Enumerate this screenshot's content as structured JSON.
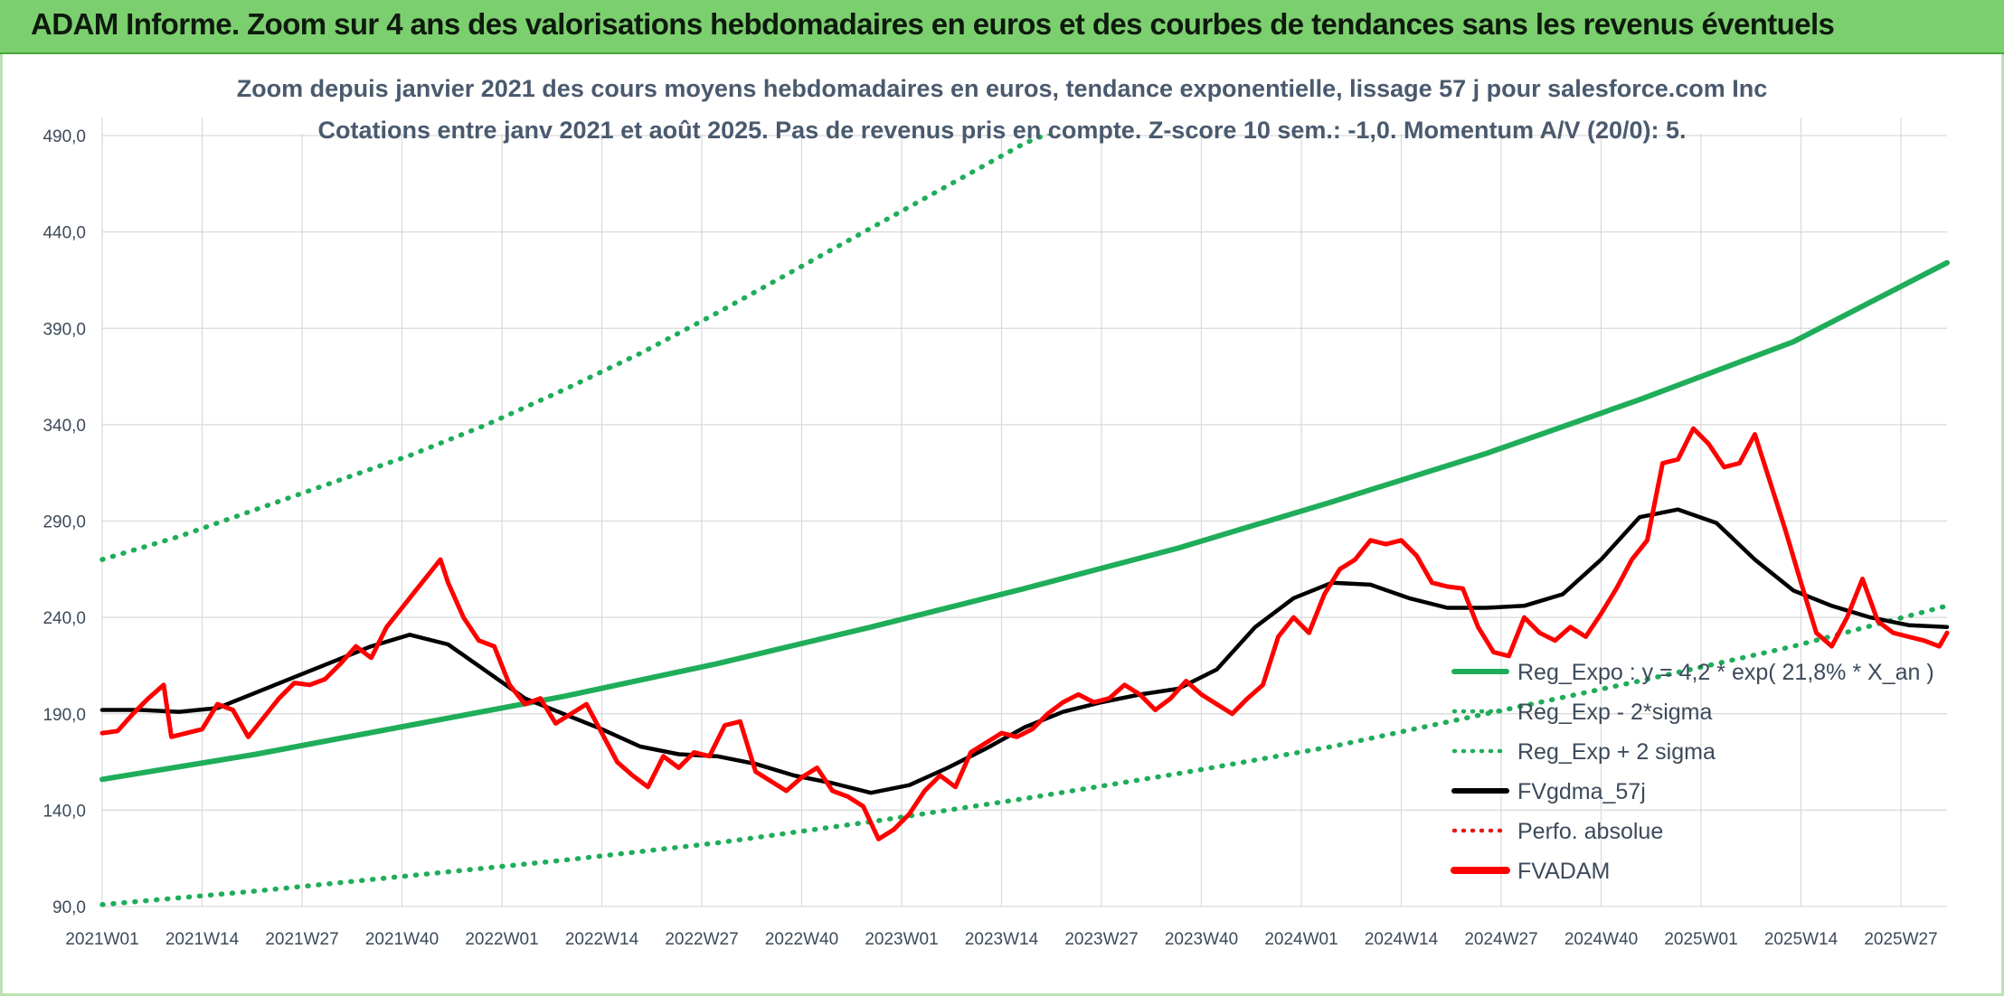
{
  "header": {
    "title": "ADAM Informe. Zoom sur 4 ans des valorisations hebdomadaires en euros et des courbes de tendances sans les revenus éventuels"
  },
  "chart_data": {
    "type": "line",
    "title_line1": "Zoom depuis janvier 2021 des cours moyens hebdomadaires en euros, tendance exponentielle, lissage 57 j pour salesforce.com Inc",
    "title_line2": "Cotations entre janv 2021 et août 2025. Pas de revenus pris en compte. Z-score 10 sem.: -1,0. Momentum A/V (20/0): 5.",
    "ylim": [
      90,
      500
    ],
    "yticks": [
      "90,0",
      "140,0",
      "190,0",
      "240,0",
      "290,0",
      "340,0",
      "390,0",
      "440,0",
      "490,0"
    ],
    "ytick_values": [
      90,
      140,
      190,
      240,
      290,
      340,
      390,
      440,
      490
    ],
    "xlim": [
      0,
      240
    ],
    "xticks": [
      "2021W01",
      "2021W14",
      "2021W27",
      "2021W40",
      "2022W01",
      "2022W14",
      "2022W27",
      "2022W40",
      "2023W01",
      "2023W14",
      "2023W27",
      "2023W40",
      "2024W01",
      "2024W14",
      "2024W27",
      "2024W40",
      "2025W01",
      "2025W14",
      "2025W27"
    ],
    "xtick_positions": [
      0,
      13,
      26,
      39,
      52,
      65,
      78,
      91,
      104,
      117,
      130,
      143,
      156,
      169,
      182,
      195,
      208,
      221,
      234
    ],
    "grid": true,
    "legend_position": "bottom-right",
    "colors": {
      "reg": "#1fad5a",
      "band": "#1fad5a",
      "smooth": "#000000",
      "perf": "#e31a1c",
      "price": "#ff0000"
    },
    "legend": [
      {
        "label": "Reg_Expo : y = 4,2 * exp( 21,8% *  X_an )",
        "style": "solid",
        "color": "#1fad5a"
      },
      {
        "label": "Reg_Exp - 2*sigma",
        "style": "dotted",
        "color": "#1fad5a"
      },
      {
        "label": "Reg_Exp + 2 sigma",
        "style": "dotted",
        "color": "#1fad5a"
      },
      {
        "label": "FVgdma_57j",
        "style": "solid",
        "color": "#000000"
      },
      {
        "label": "Perfo. absolue",
        "style": "dotted",
        "color": "#e31a1c"
      },
      {
        "label": "FVADAM",
        "style": "solid",
        "color": "#ff0000"
      }
    ],
    "series": [
      {
        "name": "Reg_Expo : y = 4,2 * exp( 21,8% *  X_an )",
        "x": [
          0,
          20,
          40,
          60,
          80,
          100,
          120,
          140,
          160,
          180,
          200,
          220,
          240
        ],
        "values": [
          156,
          169,
          184,
          199,
          216,
          235,
          255,
          276,
          300,
          325,
          353,
          383,
          424
        ]
      },
      {
        "name": "Reg_Exp - 2*sigma",
        "x": [
          0,
          20,
          40,
          60,
          80,
          100,
          120,
          140,
          160,
          180,
          200,
          220,
          240
        ],
        "values": [
          91,
          98,
          106,
          114,
          123,
          134,
          146,
          159,
          173,
          190,
          207,
          225,
          246
        ]
      },
      {
        "name": "Reg_Exp + 2 sigma",
        "x": [
          0,
          10,
          20,
          30,
          40,
          50,
          60,
          70,
          80,
          90,
          100,
          110,
          120,
          130,
          140
        ],
        "values": [
          270,
          282,
          296,
          310,
          324,
          340,
          358,
          377,
          398,
          420,
          442,
          464,
          486,
          502,
          502
        ]
      },
      {
        "name": "FVgdma_57j",
        "x": [
          0,
          5,
          10,
          15,
          20,
          25,
          30,
          35,
          40,
          45,
          50,
          55,
          60,
          65,
          70,
          75,
          80,
          85,
          90,
          95,
          100,
          105,
          110,
          115,
          120,
          125,
          130,
          135,
          140,
          145,
          150,
          155,
          160,
          165,
          170,
          175,
          180,
          185,
          190,
          195,
          200,
          205,
          210,
          215,
          220,
          225,
          230,
          235,
          240
        ],
        "values": [
          192,
          192,
          191,
          193,
          201,
          209,
          217,
          225,
          231,
          226,
          212,
          198,
          190,
          182,
          173,
          169,
          168,
          164,
          158,
          154,
          149,
          153,
          162,
          172,
          183,
          191,
          196,
          200,
          203,
          213,
          235,
          250,
          258,
          257,
          250,
          245,
          245,
          246,
          252,
          270,
          292,
          296,
          289,
          270,
          254,
          246,
          240,
          236,
          235
        ]
      },
      {
        "name": "FVADAM",
        "x": [
          0,
          2,
          4,
          6,
          8,
          9,
          11,
          13,
          15,
          17,
          19,
          21,
          23,
          25,
          27,
          29,
          31,
          33,
          35,
          37,
          39,
          41,
          43,
          44,
          45,
          47,
          49,
          51,
          53,
          55,
          57,
          59,
          61,
          63,
          65,
          67,
          69,
          71,
          73,
          75,
          77,
          79,
          81,
          83,
          85,
          87,
          89,
          91,
          93,
          95,
          97,
          99,
          101,
          103,
          105,
          107,
          109,
          111,
          113,
          115,
          117,
          119,
          121,
          123,
          125,
          127,
          129,
          131,
          133,
          135,
          137,
          139,
          141,
          143,
          145,
          147,
          149,
          151,
          153,
          155,
          157,
          159,
          161,
          163,
          165,
          167,
          169,
          171,
          173,
          175,
          177,
          179,
          181,
          183,
          185,
          187,
          189,
          191,
          193,
          195,
          197,
          199,
          201,
          203,
          205,
          207,
          209,
          211,
          213,
          215,
          217,
          219,
          221,
          223,
          225,
          227,
          229,
          231,
          233,
          235,
          237,
          239,
          240
        ],
        "values": [
          180,
          181,
          190,
          198,
          205,
          178,
          180,
          182,
          195,
          192,
          178,
          188,
          198,
          206,
          205,
          208,
          216,
          225,
          219,
          235,
          245,
          255,
          265,
          270,
          258,
          240,
          228,
          225,
          205,
          195,
          198,
          185,
          190,
          195,
          180,
          165,
          158,
          152,
          168,
          162,
          170,
          168,
          184,
          186,
          160,
          155,
          150,
          157,
          162,
          150,
          147,
          142,
          125,
          130,
          138,
          150,
          158,
          152,
          170,
          175,
          180,
          178,
          182,
          190,
          196,
          200,
          196,
          198,
          205,
          200,
          192,
          198,
          207,
          200,
          195,
          190,
          198,
          205,
          230,
          240,
          232,
          252,
          265,
          270,
          280,
          278,
          280,
          272,
          258,
          256,
          255,
          235,
          222,
          220,
          240,
          232,
          228,
          235,
          230,
          242,
          255,
          270,
          280,
          320,
          322,
          338,
          330,
          318,
          320,
          335,
          310,
          285,
          258,
          232,
          225,
          240,
          260,
          238,
          232,
          230,
          228,
          225,
          232
        ]
      }
    ]
  }
}
